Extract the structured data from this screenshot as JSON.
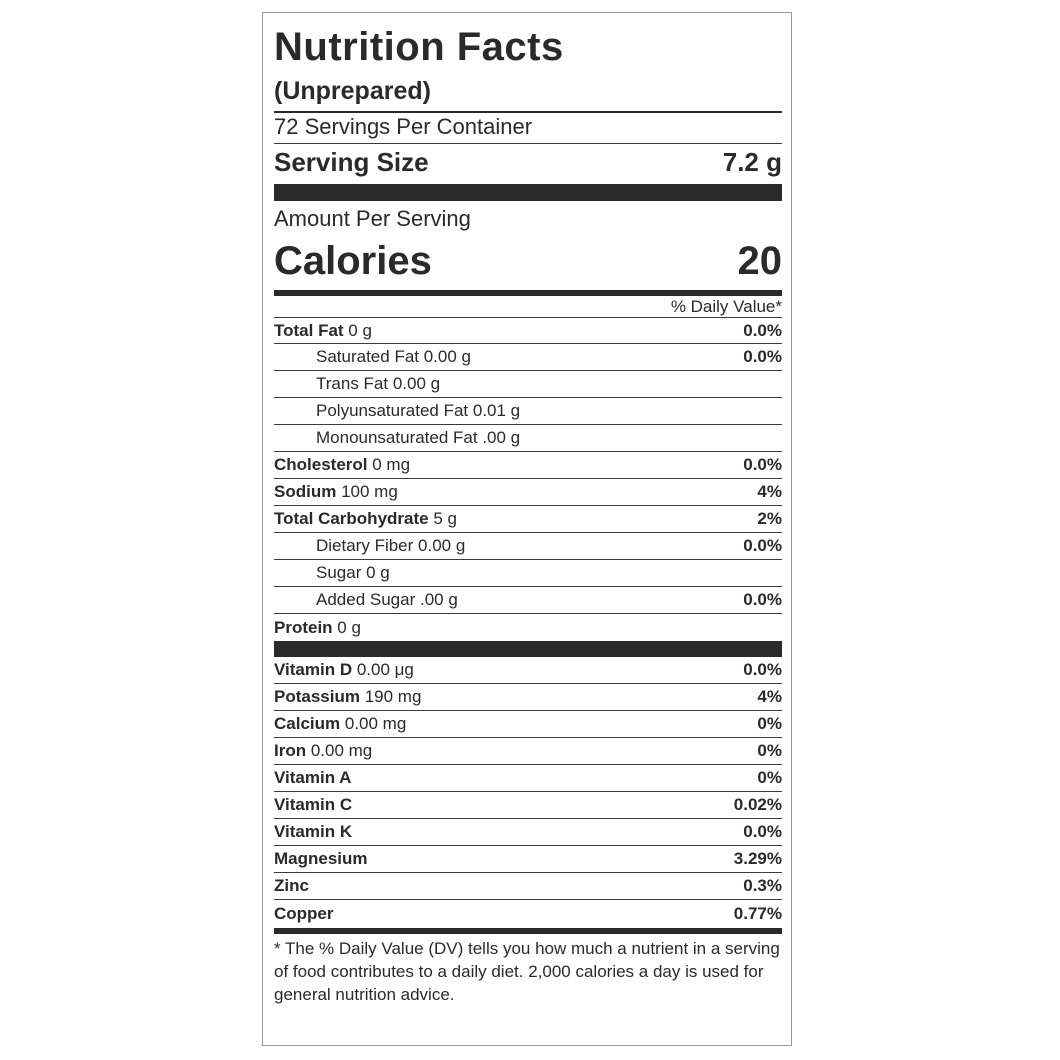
{
  "title": "Nutrition Facts",
  "subtitle": "(Unprepared)",
  "servings_per_container": "72 Servings Per Container",
  "serving_size": {
    "label": "Serving Size",
    "value": "7.2 g"
  },
  "amount_per_serving": "Amount Per Serving",
  "calories": {
    "label": "Calories",
    "value": "20"
  },
  "daily_value_header": "% Daily Value*",
  "nutrients": [
    {
      "name": "Total Fat",
      "amount": " 0 g",
      "pct": "0.0%"
    },
    {
      "name": "Saturated Fat 0.00 g",
      "amount": "",
      "pct": "0.0%"
    },
    {
      "name": "Trans Fat 0.00 g",
      "amount": "",
      "pct": ""
    },
    {
      "name": "Polyunsaturated Fat 0.01 g",
      "amount": "",
      "pct": ""
    },
    {
      "name": "Monounsaturated Fat .00 g",
      "amount": "",
      "pct": ""
    },
    {
      "name": "Cholesterol",
      "amount": " 0 mg",
      "pct": "0.0%"
    },
    {
      "name": "Sodium",
      "amount": " 100 mg",
      "pct": "4%"
    },
    {
      "name": "Total Carbohydrate",
      "amount": " 5 g",
      "pct": "2%"
    },
    {
      "name": "Dietary Fiber 0.00 g",
      "amount": "",
      "pct": "0.0%"
    },
    {
      "name": "Sugar 0 g",
      "amount": "",
      "pct": ""
    },
    {
      "name": "Added Sugar .00 g",
      "amount": "",
      "pct": "0.0%"
    },
    {
      "name": "Protein",
      "amount": " 0 g",
      "pct": ""
    }
  ],
  "vitamins": [
    {
      "name": "Vitamin D",
      "amount": " 0.00 μg",
      "pct": "0.0%"
    },
    {
      "name": "Potassium",
      "amount": " 190 mg",
      "pct": "4%"
    },
    {
      "name": "Calcium",
      "amount": " 0.00 mg",
      "pct": "0%"
    },
    {
      "name": "Iron",
      "amount": " 0.00 mg",
      "pct": "0%"
    },
    {
      "name": "Vitamin A",
      "amount": "",
      "pct": "0%"
    },
    {
      "name": "Vitamin C",
      "amount": "",
      "pct": "0.02%"
    },
    {
      "name": "Vitamin K",
      "amount": "",
      "pct": "0.0%"
    },
    {
      "name": "Magnesium",
      "amount": "",
      "pct": "3.29%"
    },
    {
      "name": "Zinc",
      "amount": "",
      "pct": "0.3%"
    },
    {
      "name": "Copper",
      "amount": "",
      "pct": "0.77%"
    }
  ],
  "footnote": "* The % Daily Value (DV) tells you how much a nutrient in a serving of food contributes to a daily diet. 2,000 calories a day is used for general nutrition advice."
}
